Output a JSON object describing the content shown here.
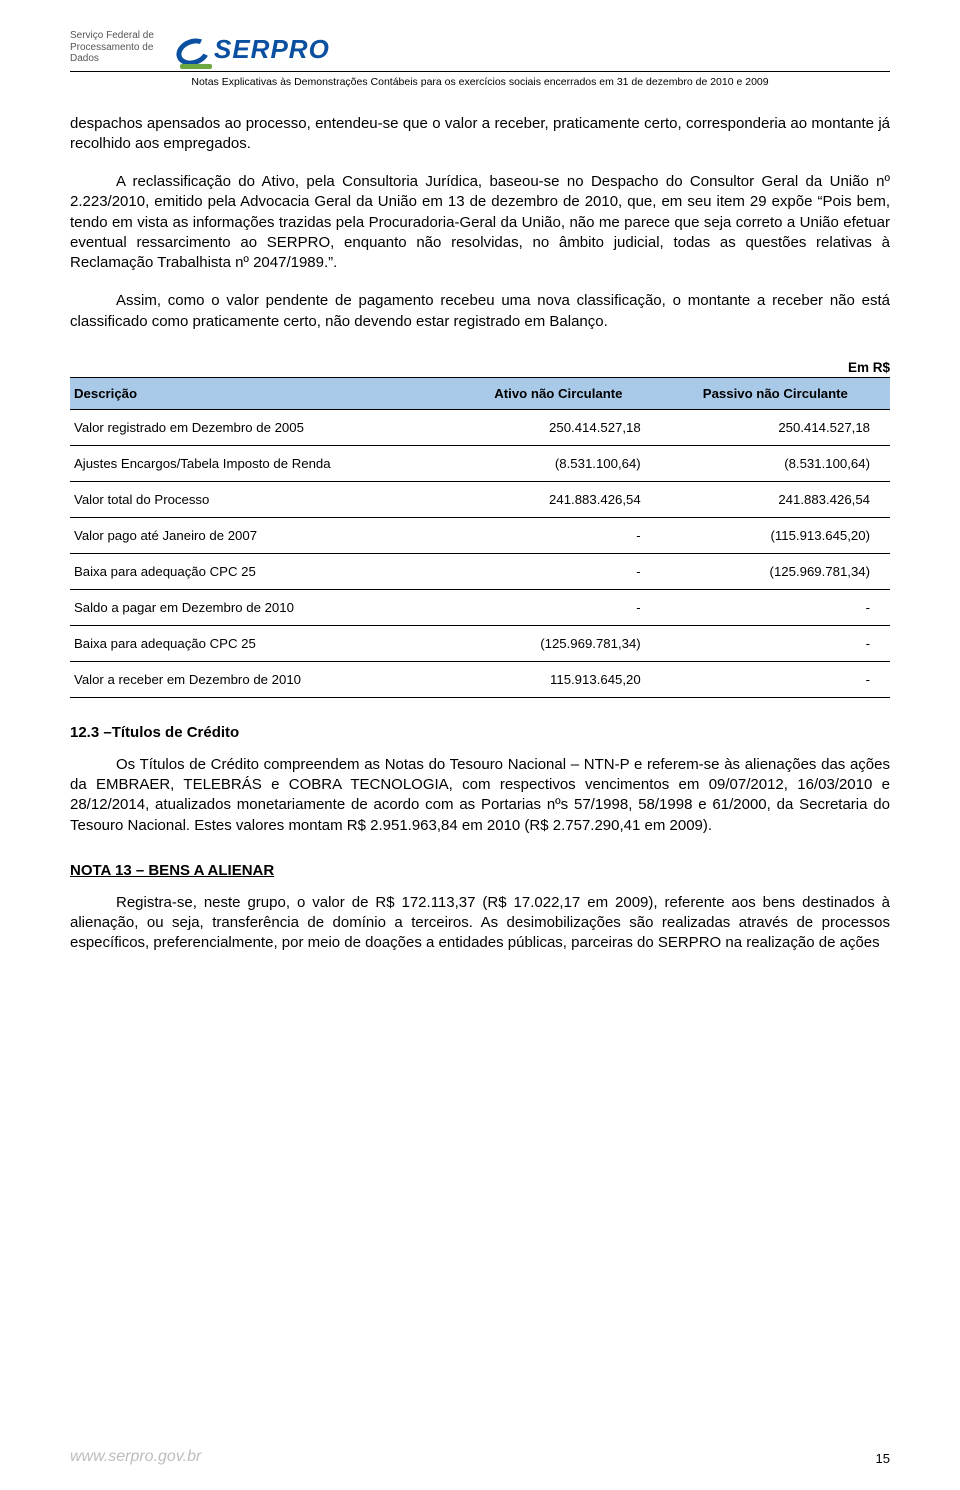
{
  "header": {
    "sfpd_line1": "Serviço Federal de",
    "sfpd_line2": "Processamento de Dados",
    "logo_text": "SERPRO",
    "subtitle": "Notas Explicativas às Demonstrações Contábeis para os exercícios sociais encerrados em 31 de dezembro de 2010 e 2009"
  },
  "paragraphs": {
    "p1": "despachos apensados ao processo, entendeu-se que o valor a receber, praticamente certo, corresponderia ao montante já recolhido aos empregados.",
    "p2": "A reclassificação do Ativo, pela Consultoria Jurídica, baseou-se no Despacho do Consultor Geral da União nº 2.223/2010, emitido pela Advocacia Geral da União em 13 de dezembro de 2010, que, em seu item 29 expõe “Pois bem, tendo em vista as informações trazidas pela Procuradoria-Geral da União, não me parece que seja correto a União efetuar eventual ressarcimento ao SERPRO, enquanto não resolvidas, no âmbito judicial, todas as questões relativas à Reclamação Trabalhista nº 2047/1989.”.",
    "p3": "Assim, como o valor pendente de pagamento recebeu uma nova classificação, o montante a receber não está classificado como praticamente certo, não devendo estar registrado em Balanço.",
    "p4": "Os Títulos de Crédito compreendem as Notas do Tesouro Nacional – NTN-P e referem-se às alienações das ações da EMBRAER, TELEBRÁS e COBRA TECNOLOGIA, com respectivos vencimentos em 09/07/2012, 16/03/2010 e 28/12/2014, atualizados monetariamente de acordo com as Portarias nºs 57/1998, 58/1998 e 61/2000, da Secretaria do Tesouro Nacional. Estes valores montam R$ 2.951.963,84 em 2010 (R$ 2.757.290,41 em 2009).",
    "p5": "Registra-se, neste grupo, o valor de R$ 172.113,37 (R$ 17.022,17 em 2009), referente aos bens destinados à alienação, ou seja, transferência de domínio a terceiros. As desimobilizações são realizadas através de processos específicos, preferencialmente, por meio de doações a entidades públicas, parceiras do SERPRO na realização de ações"
  },
  "table": {
    "currency_label": "Em R$",
    "columns": [
      "Descrição",
      "Ativo não Circulante",
      "Passivo não Circulante"
    ],
    "rows": [
      {
        "desc": "Valor registrado em Dezembro de 2005",
        "ativo": "250.414.527,18",
        "passivo": "250.414.527,18"
      },
      {
        "desc": "Ajustes Encargos/Tabela Imposto de Renda",
        "ativo": "(8.531.100,64)",
        "passivo": "(8.531.100,64)"
      },
      {
        "desc": "Valor total do Processo",
        "ativo": "241.883.426,54",
        "passivo": "241.883.426,54"
      },
      {
        "desc": "Valor pago até Janeiro de 2007",
        "ativo": "-",
        "passivo": "(115.913.645,20)"
      },
      {
        "desc": "Baixa para adequação CPC 25",
        "ativo": "-",
        "passivo": "(125.969.781,34)"
      },
      {
        "desc": "Saldo a pagar em Dezembro de 2010",
        "ativo": "-",
        "passivo": "-"
      },
      {
        "desc": "Baixa para adequação CPC 25",
        "ativo": "(125.969.781,34)",
        "passivo": "-"
      },
      {
        "desc": "Valor a receber em Dezembro de 2010",
        "ativo": "115.913.645,20",
        "passivo": "-"
      }
    ],
    "header_bg": "#a9c9e8",
    "border_color": "#000000"
  },
  "sections": {
    "s123": "12.3 –Títulos de Crédito",
    "nota13": "NOTA 13 – BENS A ALIENAR"
  },
  "footer": {
    "url": "www.serpro.gov.br",
    "page": "15"
  },
  "colors": {
    "logo_blue": "#0a4fa0",
    "logo_green": "#6da843",
    "footer_grey": "#bdbdbd"
  }
}
